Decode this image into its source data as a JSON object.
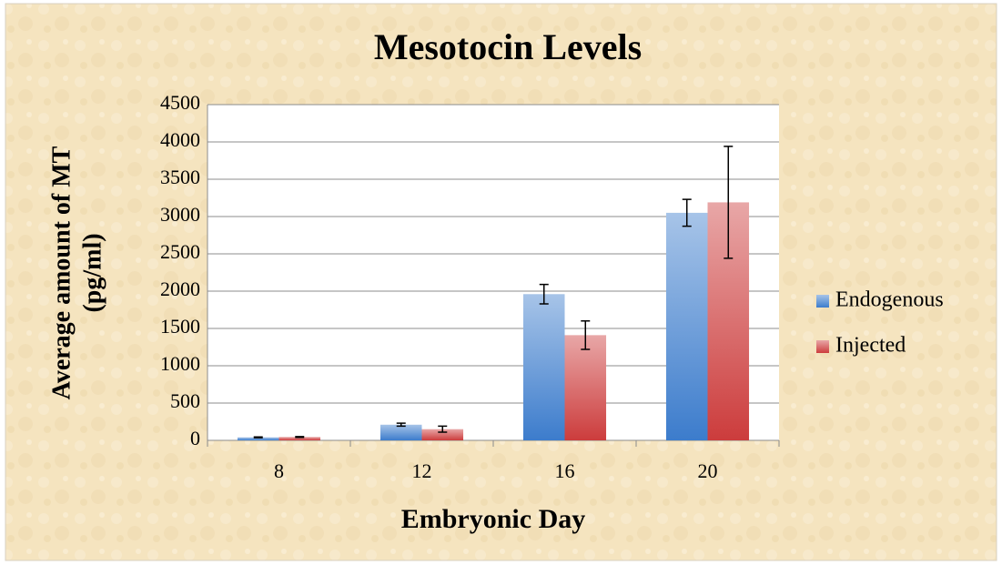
{
  "chart_data": {
    "type": "bar",
    "title": "Mesotocin Levels",
    "x_label": "Embryonic Day",
    "y_label": [
      "Average amount of MT",
      "(pg/ml)"
    ],
    "categories": [
      "8",
      "12",
      "16",
      "20"
    ],
    "series": [
      {
        "name": "Endogenous",
        "color": "#3c7ccc",
        "values": [
          40,
          210,
          1960,
          3050
        ],
        "errors": [
          5,
          20,
          130,
          180
        ]
      },
      {
        "name": "Injected",
        "color": "#cc3c3c",
        "values": [
          45,
          150,
          1410,
          3190
        ],
        "errors": [
          5,
          40,
          190,
          750
        ]
      }
    ],
    "ylim": [
      0,
      4500
    ],
    "yticks": [
      0,
      500,
      1000,
      1500,
      2000,
      2500,
      3000,
      3500,
      4000,
      4500
    ],
    "grid": true,
    "legend": "right"
  }
}
